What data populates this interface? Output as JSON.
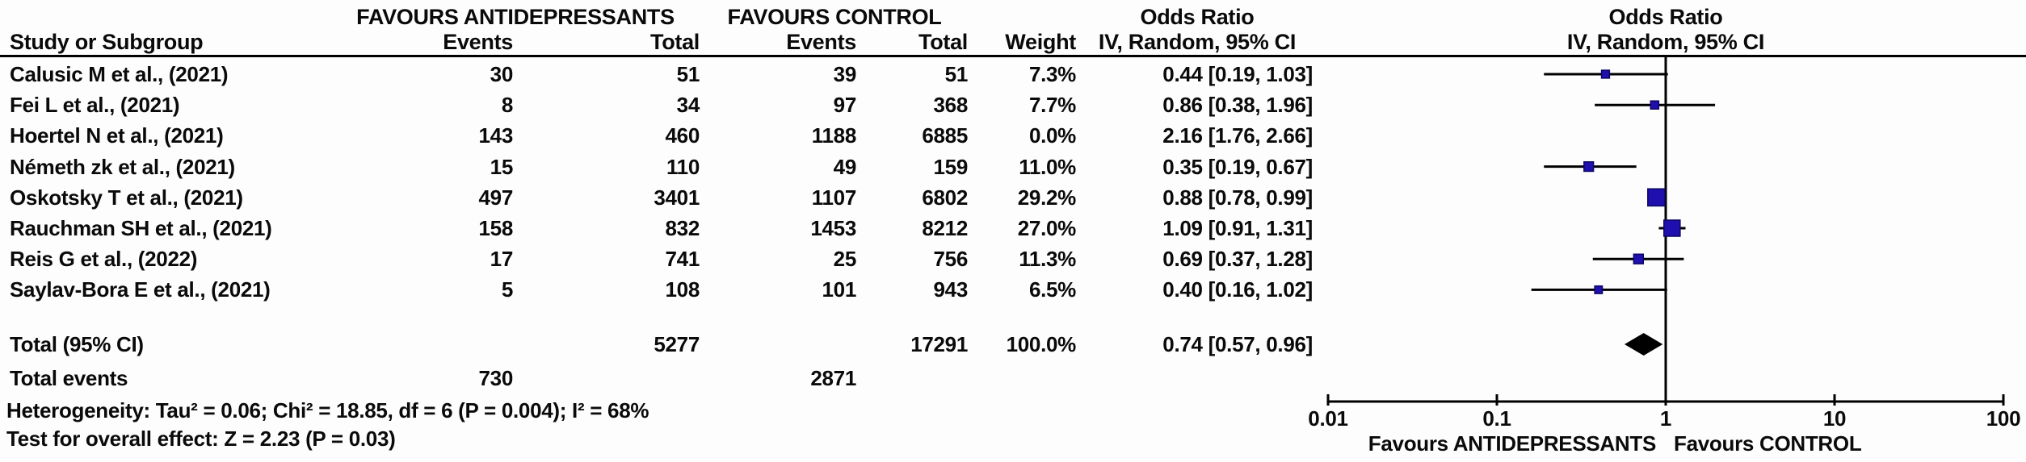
{
  "header": {
    "group_antidepressants": "FAVOURS ANTIDEPRESSANTS",
    "group_control": "FAVOURS CONTROL",
    "or_col_title": "Odds Ratio",
    "or_col_subtitle": "IV, Random, 95% CI",
    "plot_title": "Odds Ratio",
    "plot_subtitle": "IV, Random, 95% CI",
    "col_study": "Study or Subgroup",
    "col_events_antidepressants": "Events",
    "col_total_antidepressants": "Total",
    "col_events_control": "Events",
    "col_total_control": "Total",
    "col_weight": "Weight"
  },
  "table": {
    "rows": [
      {
        "study": "Calusic M et al., (2021)",
        "events1": "30",
        "total1": "51",
        "events2": "39",
        "total2": "51",
        "weight": "7.3%",
        "or_ci": "0.44 [0.19, 1.03]"
      },
      {
        "study": "Fei L et al., (2021)",
        "events1": "8",
        "total1": "34",
        "events2": "97",
        "total2": "368",
        "weight": "7.7%",
        "or_ci": "0.86 [0.38, 1.96]"
      },
      {
        "study": "Hoertel N et al., (2021)",
        "events1": "143",
        "total1": "460",
        "events2": "1188",
        "total2": "6885",
        "weight": "0.0%",
        "or_ci": "2.16 [1.76, 2.66]"
      },
      {
        "study": "Németh zk et al., (2021)",
        "events1": "15",
        "total1": "110",
        "events2": "49",
        "total2": "159",
        "weight": "11.0%",
        "or_ci": "0.35 [0.19, 0.67]"
      },
      {
        "study": "Oskotsky T et al., (2021)",
        "events1": "497",
        "total1": "3401",
        "events2": "1107",
        "total2": "6802",
        "weight": "29.2%",
        "or_ci": "0.88 [0.78, 0.99]"
      },
      {
        "study": "Rauchman SH et al., (2021)",
        "events1": "158",
        "total1": "832",
        "events2": "1453",
        "total2": "8212",
        "weight": "27.0%",
        "or_ci": "1.09 [0.91, 1.31]"
      },
      {
        "study": "Reis G et al., (2022)",
        "events1": "17",
        "total1": "741",
        "events2": "25",
        "total2": "756",
        "weight": "11.3%",
        "or_ci": "0.69 [0.37, 1.28]"
      },
      {
        "study": "Saylav-Bora E et al., (2021)",
        "events1": "5",
        "total1": "108",
        "events2": "101",
        "total2": "943",
        "weight": "6.5%",
        "or_ci": "0.40 [0.16, 1.02]"
      }
    ],
    "total_row": {
      "label": "Total (95% CI)",
      "total1": "5277",
      "total2": "17291",
      "weight": "100.0%",
      "or_ci": "0.74 [0.57, 0.96]"
    },
    "total_events_row": {
      "label": "Total events",
      "events1": "730",
      "events2": "2871"
    }
  },
  "footnotes": {
    "heterogeneity": "Heterogeneity: Tau² = 0.06; Chi² = 18.85, df = 6 (P = 0.004); I² = 68%",
    "overall_effect": "Test for overall effect: Z = 2.23 (P = 0.03)"
  },
  "axis": {
    "tick_labels": [
      "0.01",
      "0.1",
      "1",
      "10",
      "100"
    ],
    "label_left": "Favours ANTIDEPRESSANTS",
    "label_right": "Favours CONTROL"
  },
  "chart_data": {
    "type": "scatter",
    "subtype": "forest-plot",
    "title": "Odds Ratio",
    "subtitle": "IV, Random, 95% CI",
    "x_scale": "log",
    "x_range": [
      0.01,
      100
    ],
    "x_ticks": [
      0.01,
      0.1,
      1,
      10,
      100
    ],
    "reference_line": 1,
    "xlabel_left": "Favours ANTIDEPRESSANTS",
    "xlabel_right": "Favours CONTROL",
    "series": [
      {
        "name": "Calusic M et al., (2021)",
        "or": 0.44,
        "ci": [
          0.19,
          1.03
        ],
        "weight_pct": 7.3,
        "plotted": true
      },
      {
        "name": "Fei L et al., (2021)",
        "or": 0.86,
        "ci": [
          0.38,
          1.96
        ],
        "weight_pct": 7.7,
        "plotted": true
      },
      {
        "name": "Hoertel N et al., (2021)",
        "or": 2.16,
        "ci": [
          1.76,
          2.66
        ],
        "weight_pct": 0.0,
        "plotted": false
      },
      {
        "name": "Németh zk et al., (2021)",
        "or": 0.35,
        "ci": [
          0.19,
          0.67
        ],
        "weight_pct": 11.0,
        "plotted": true
      },
      {
        "name": "Oskotsky T et al., (2021)",
        "or": 0.88,
        "ci": [
          0.78,
          0.99
        ],
        "weight_pct": 29.2,
        "plotted": true
      },
      {
        "name": "Rauchman SH et al., (2021)",
        "or": 1.09,
        "ci": [
          0.91,
          1.31
        ],
        "weight_pct": 27.0,
        "plotted": true
      },
      {
        "name": "Reis G et al., (2022)",
        "or": 0.69,
        "ci": [
          0.37,
          1.28
        ],
        "weight_pct": 11.3,
        "plotted": true
      },
      {
        "name": "Saylav-Bora E et al., (2021)",
        "or": 0.4,
        "ci": [
          0.16,
          1.02
        ],
        "weight_pct": 6.5,
        "plotted": true
      }
    ],
    "pooled": {
      "name": "Total (95% CI)",
      "or": 0.74,
      "ci": [
        0.57,
        0.96
      ],
      "weight_pct": 100.0
    }
  },
  "colors": {
    "marker_fill": "#1e0fae",
    "marker_stroke": "#0d0663",
    "line": "#000000",
    "diamond": "#000000"
  }
}
